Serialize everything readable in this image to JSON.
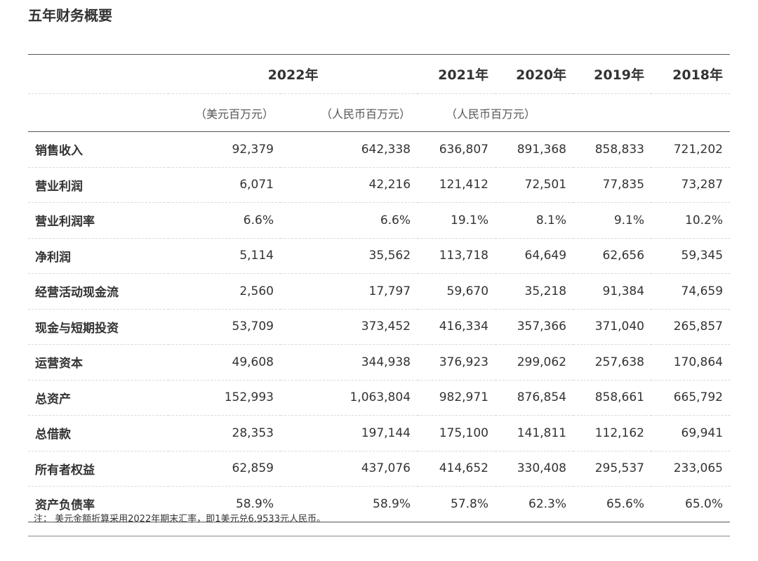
{
  "title": "五年财务概要",
  "header": {
    "years": {
      "y2022": "2022年",
      "y2021": "2021年",
      "y2020": "2020年",
      "y2019": "2019年",
      "y2018": "2018年"
    },
    "units": {
      "usd": "（美元百万元）",
      "rmb_2022": "（人民币百万元）",
      "rmb_hist": "（人民币百万元）"
    }
  },
  "rows": [
    {
      "label": "销售收入",
      "usd_2022": "92,379",
      "rmb_2022": "642,338",
      "y2021": "636,807",
      "y2020": "891,368",
      "y2019": "858,833",
      "y2018": "721,202"
    },
    {
      "label": "营业利润",
      "usd_2022": "6,071",
      "rmb_2022": "42,216",
      "y2021": "121,412",
      "y2020": "72,501",
      "y2019": "77,835",
      "y2018": "73,287"
    },
    {
      "label": "营业利润率",
      "usd_2022": "6.6%",
      "rmb_2022": "6.6%",
      "y2021": "19.1%",
      "y2020": "8.1%",
      "y2019": "9.1%",
      "y2018": "10.2%"
    },
    {
      "label": "净利润",
      "usd_2022": "5,114",
      "rmb_2022": "35,562",
      "y2021": "113,718",
      "y2020": "64,649",
      "y2019": "62,656",
      "y2018": "59,345"
    },
    {
      "label": "经营活动现金流",
      "usd_2022": "2,560",
      "rmb_2022": "17,797",
      "y2021": "59,670",
      "y2020": "35,218",
      "y2019": "91,384",
      "y2018": "74,659"
    },
    {
      "label": "现金与短期投资",
      "usd_2022": "53,709",
      "rmb_2022": "373,452",
      "y2021": "416,334",
      "y2020": "357,366",
      "y2019": "371,040",
      "y2018": "265,857"
    },
    {
      "label": "运营资本",
      "usd_2022": "49,608",
      "rmb_2022": "344,938",
      "y2021": "376,923",
      "y2020": "299,062",
      "y2019": "257,638",
      "y2018": "170,864"
    },
    {
      "label": "总资产",
      "usd_2022": "152,993",
      "rmb_2022": "1,063,804",
      "y2021": "982,971",
      "y2020": "876,854",
      "y2019": "858,661",
      "y2018": "665,792"
    },
    {
      "label": "总借款",
      "usd_2022": "28,353",
      "rmb_2022": "197,144",
      "y2021": "175,100",
      "y2020": "141,811",
      "y2019": "112,162",
      "y2018": "69,941"
    },
    {
      "label": "所有者权益",
      "usd_2022": "62,859",
      "rmb_2022": "437,076",
      "y2021": "414,652",
      "y2020": "330,408",
      "y2019": "295,537",
      "y2018": "233,065"
    },
    {
      "label": "资产负债率",
      "usd_2022": "58.9%",
      "rmb_2022": "58.9%",
      "y2021": "57.8%",
      "y2020": "62.3%",
      "y2019": "65.6%",
      "y2018": "65.0%"
    }
  ],
  "note": "注： 美元金额折算采用2022年期末汇率，即1美元兑6.9533元人民币。"
}
